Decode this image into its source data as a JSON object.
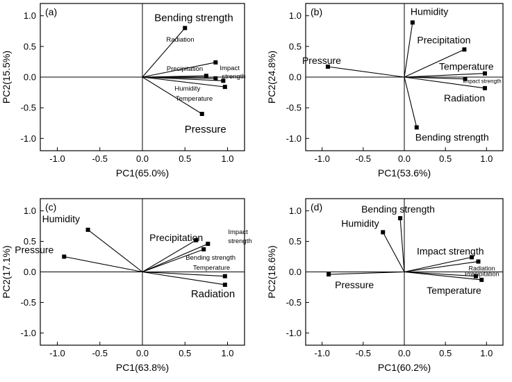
{
  "chart_data": [
    {
      "type": "scatter",
      "panel": "(a)",
      "xlabel": "PC1(65.0%)",
      "ylabel": "PC2(15.5%)",
      "xlim": [
        -1.2,
        1.2
      ],
      "ylim": [
        -1.2,
        1.2
      ],
      "xticks": [
        "-1.0",
        "-0.5",
        "0.0",
        "0.5",
        "1.0"
      ],
      "yticks": [
        "-1.0",
        "-0.5",
        "0.0",
        "0.5",
        "1.0"
      ],
      "points": [
        {
          "name": "Bending strength",
          "x": 0.5,
          "y": 0.8,
          "size": "large"
        },
        {
          "name": "Radiation",
          "x": 0.86,
          "y": 0.24,
          "size": "small"
        },
        {
          "name": "Impact strength",
          "x": 0.86,
          "y": -0.02,
          "size": "small"
        },
        {
          "name": "Precipitation",
          "x": 0.75,
          "y": 0.02,
          "size": "small"
        },
        {
          "name": "Humidity",
          "x": 0.95,
          "y": -0.06,
          "size": "small"
        },
        {
          "name": "Temperature",
          "x": 0.97,
          "y": -0.16,
          "size": "small"
        },
        {
          "name": "Pressure",
          "x": 0.7,
          "y": -0.6,
          "size": "large"
        }
      ]
    },
    {
      "type": "scatter",
      "panel": "(b)",
      "xlabel": "PC1(53.6%)",
      "ylabel": "PC2(24.8%)",
      "xlim": [
        -1.2,
        1.2
      ],
      "ylim": [
        -1.2,
        1.2
      ],
      "xticks": [
        "-1.0",
        "-0.5",
        "0.0",
        "0.5",
        "1.0"
      ],
      "yticks": [
        "-1.0",
        "-0.5",
        "0.0",
        "0.5",
        "1.0"
      ],
      "points": [
        {
          "name": "Humidity",
          "x": 0.1,
          "y": 0.89,
          "size": "large"
        },
        {
          "name": "Precipitation",
          "x": 0.73,
          "y": 0.45,
          "size": "large"
        },
        {
          "name": "Pressure",
          "x": -0.93,
          "y": 0.17,
          "size": "large"
        },
        {
          "name": "Temperature",
          "x": 0.98,
          "y": 0.06,
          "size": "large"
        },
        {
          "name": "Impact strength",
          "x": 0.74,
          "y": -0.03,
          "size": "small"
        },
        {
          "name": "Radiation",
          "x": 0.98,
          "y": -0.18,
          "size": "large"
        },
        {
          "name": "Bending strength",
          "x": 0.15,
          "y": -0.82,
          "size": "large"
        }
      ]
    },
    {
      "type": "scatter",
      "panel": "(c)",
      "xlabel": "PC1(63.8%)",
      "ylabel": "PC2(17.1%)",
      "xlim": [
        -1.2,
        1.2
      ],
      "ylim": [
        -1.2,
        1.2
      ],
      "xticks": [
        "-1.0",
        "-0.5",
        "0.0",
        "0.5",
        "1.0"
      ],
      "yticks": [
        "-1.0",
        "-0.5",
        "0.0",
        "0.5",
        "1.0"
      ],
      "points": [
        {
          "name": "Humidity",
          "x": -0.64,
          "y": 0.69,
          "size": "large"
        },
        {
          "name": "Pressure",
          "x": -0.92,
          "y": 0.25,
          "size": "large"
        },
        {
          "name": "Precipitation",
          "x": 0.63,
          "y": 0.52,
          "size": "large"
        },
        {
          "name": "Impact strength",
          "x": 0.77,
          "y": 0.46,
          "size": "small"
        },
        {
          "name": "Bending strength",
          "x": 0.72,
          "y": 0.37,
          "size": "small"
        },
        {
          "name": "Temperature",
          "x": 0.97,
          "y": -0.07,
          "size": "small"
        },
        {
          "name": "Radiation",
          "x": 0.97,
          "y": -0.21,
          "size": "large"
        }
      ]
    },
    {
      "type": "scatter",
      "panel": "(d)",
      "xlabel": "PC1(60.2%)",
      "ylabel": "PC2(18.6%)",
      "xlim": [
        -1.2,
        1.2
      ],
      "ylim": [
        -1.2,
        1.2
      ],
      "xticks": [
        "-1.0",
        "-0.5",
        "0.0",
        "0.5",
        "1.0"
      ],
      "yticks": [
        "-1.0",
        "-0.5",
        "0.0",
        "0.5",
        "1.0"
      ],
      "points": [
        {
          "name": "Bending strength",
          "x": -0.05,
          "y": 0.88,
          "size": "large"
        },
        {
          "name": "Humidity",
          "x": -0.26,
          "y": 0.65,
          "size": "large"
        },
        {
          "name": "Impact strength",
          "x": 0.82,
          "y": 0.24,
          "size": "large"
        },
        {
          "name": "Radiation",
          "x": 0.9,
          "y": 0.17,
          "size": "small"
        },
        {
          "name": "Precipitation",
          "x": 0.87,
          "y": -0.07,
          "size": "small"
        },
        {
          "name": "Temperature",
          "x": 0.94,
          "y": -0.13,
          "size": "large"
        },
        {
          "name": "Pressure",
          "x": -0.92,
          "y": -0.04,
          "size": "large"
        }
      ]
    }
  ]
}
